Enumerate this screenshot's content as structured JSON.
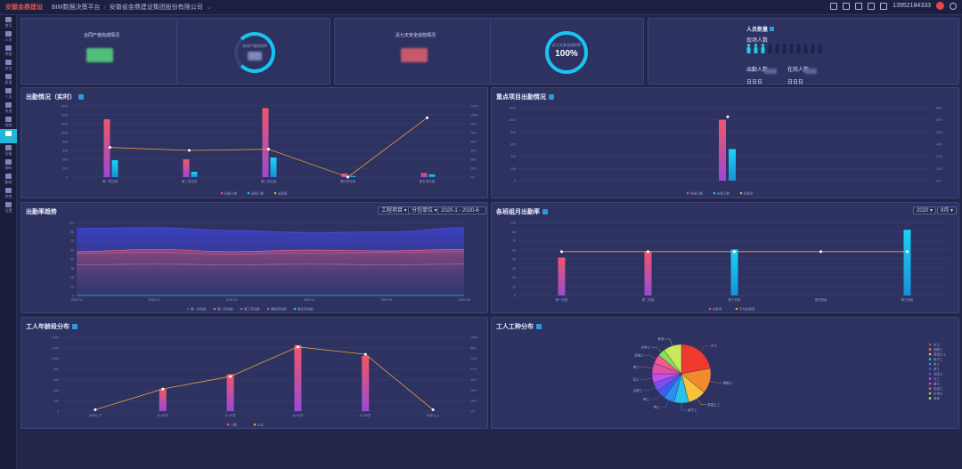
{
  "topbar": {
    "logo_text": "安徽金鼎建设",
    "platform": "BIM数据决策平台",
    "company": "安徽省金鼎建设集团股份有限公司",
    "phone": "13952184333"
  },
  "sidebar": {
    "items": [
      "首页",
      "人员",
      "考勤",
      "安全",
      "质量",
      "人员",
      "进度",
      "视频",
      "环境",
      "设备",
      "物料",
      "能耗",
      "系统",
      "设置"
    ]
  },
  "kpis": {
    "contract_title": "合同产值完成情况",
    "contract_ring_label": "合同产值完成率",
    "recent_title": "近七天安全巡检情况",
    "recent_ring_label": "近七天安全巡检率",
    "recent_ring_value": "100%",
    "personnel_title": "人员数量",
    "onsite_label": "现场人数",
    "attendance_label": "出勤人数",
    "present_label": "在岗人数",
    "attendance_value": "日日日",
    "present_value": "日日日"
  },
  "panels": {
    "attendance_realtime": "出勤情况（实时）",
    "key_projects": "重点项目出勤情况",
    "attendance_trend": "出勤率趋势",
    "team_monthly": "各班组月出勤率",
    "worker_age": "工人年龄段分布",
    "worker_type": "工人工种分布"
  },
  "filters": {
    "project": "工程项目",
    "subcontract": "分包单位",
    "date_range": "2020-1 - 2020-6",
    "year": "2020",
    "month": "8月"
  },
  "colors": {
    "pink": "#e8546a",
    "purple": "#a64bd0",
    "cyan": "#19c4f0",
    "orange": "#f0a23c",
    "panel": "#2d3260",
    "background": "#232747"
  },
  "chart_data": [
    {
      "id": "attendance_realtime",
      "type": "bar",
      "categories": [
        "第一项目部",
        "第二项目部",
        "第三项目部",
        "第四项目部",
        "第五项目部"
      ],
      "series": [
        {
          "name": "在册人数",
          "kind": "bar",
          "values": [
            1300,
            400,
            1550,
            80,
            90
          ]
        },
        {
          "name": "出勤人数",
          "kind": "bar",
          "values": [
            380,
            120,
            440,
            25,
            60
          ]
        },
        {
          "name": "出勤率",
          "kind": "line",
          "axis": "right",
          "values": [
            50,
            45,
            47,
            0,
            100
          ]
        }
      ],
      "ylim": [
        0,
        1600
      ],
      "y2lim": [
        0,
        120
      ]
    },
    {
      "id": "key_projects",
      "type": "bar",
      "categories": [
        "重点项目"
      ],
      "series": [
        {
          "name": "在册人数",
          "kind": "bar",
          "values": [
            1000
          ]
        },
        {
          "name": "出勤人数",
          "kind": "bar",
          "values": [
            520
          ]
        },
        {
          "name": "出勤率",
          "kind": "line",
          "axis": "right",
          "values": [
            70
          ]
        }
      ],
      "ylim": [
        0,
        1200
      ],
      "y2lim": [
        0,
        80
      ]
    },
    {
      "id": "attendance_trend",
      "type": "area",
      "x": [
        "2020-01",
        "2020-02",
        "2020-03",
        "2020-04",
        "2020-05",
        "2020-06"
      ],
      "series": [
        {
          "name": "第一项目部",
          "values": [
            92,
            93,
            89,
            86,
            87,
            93
          ]
        },
        {
          "name": "第二项目部",
          "values": [
            60,
            63,
            60,
            62,
            61,
            63
          ]
        },
        {
          "name": "第三项目部",
          "values": [
            58,
            59,
            57,
            58,
            59,
            60
          ]
        },
        {
          "name": "第四项目部",
          "values": [
            42,
            43,
            42,
            43,
            42,
            43
          ]
        },
        {
          "name": "第五项目部",
          "values": [
            0,
            0,
            0,
            0,
            0,
            0
          ]
        }
      ],
      "ylim": [
        0,
        100
      ]
    },
    {
      "id": "team_monthly",
      "type": "bar",
      "categories": [
        "第一班组",
        "第二班组",
        "第三班组",
        "第四班组",
        "第五班组"
      ],
      "series": [
        {
          "name": "出勤率",
          "kind": "bar",
          "values": [
            52,
            60,
            63,
            0,
            90
          ]
        },
        {
          "name": "平均出勤率",
          "kind": "line",
          "values": [
            60,
            60,
            60,
            60,
            60
          ]
        }
      ],
      "ylim": [
        0,
        100
      ]
    },
    {
      "id": "worker_age",
      "type": "bar",
      "categories": [
        "18岁以下",
        "18-30岁",
        "31-40岁",
        "41-50岁",
        "51-60岁",
        "60岁以上"
      ],
      "series": [
        {
          "name": "人数",
          "kind": "bar",
          "values": [
            0,
            420,
            700,
            1250,
            1050,
            0
          ]
        },
        {
          "name": "占比",
          "kind": "line",
          "axis": "right",
          "values": [
            2,
            30,
            47,
            87,
            77,
            2
          ]
        }
      ],
      "ylim": [
        0,
        1400
      ],
      "y2lim": [
        0,
        100
      ]
    },
    {
      "id": "worker_type",
      "type": "pie",
      "labels": [
        "木工",
        "钢筋工",
        "混凝土工",
        "架子工",
        "电工",
        "焊工",
        "油漆工",
        "瓦工",
        "普工",
        "机械工",
        "水电工",
        "其他"
      ],
      "values": [
        22,
        14,
        10,
        8,
        6,
        5,
        5,
        5,
        6,
        5,
        4,
        10
      ],
      "colors": [
        "#f0392f",
        "#f08a2c",
        "#f6c33a",
        "#27c2e6",
        "#2d8ef0",
        "#3b5ef0",
        "#7a4ef0",
        "#c44ef0",
        "#e24fa7",
        "#f05b8b",
        "#8ae05a",
        "#c8e85a"
      ]
    }
  ]
}
